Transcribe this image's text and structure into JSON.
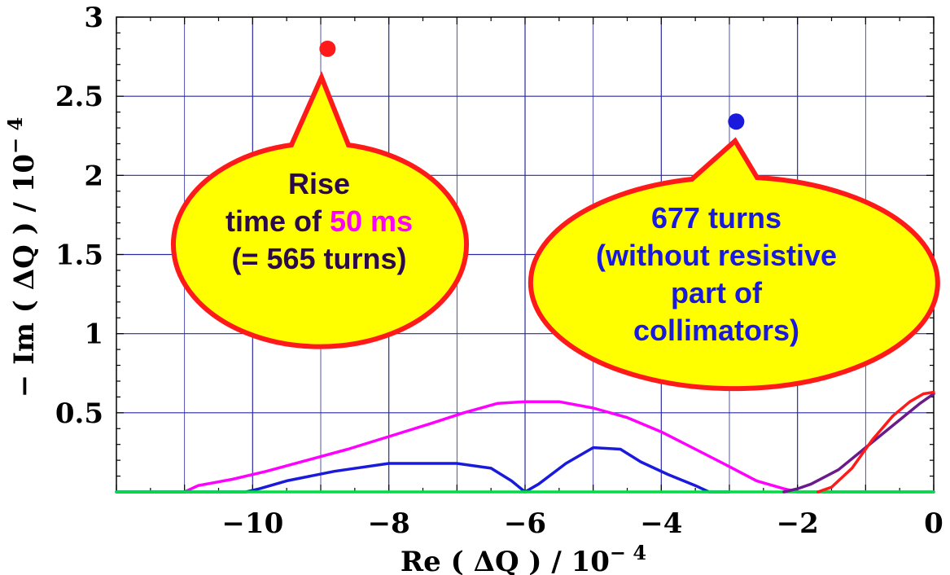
{
  "chart_data": {
    "type": "line",
    "xlabel_main": "Re ( ΔQ ) / 10",
    "xlabel_exp": "− 4",
    "ylabel_main": "− Im ( ΔQ ) / 10",
    "ylabel_exp": "− 4",
    "xlim": [
      -12,
      0
    ],
    "ylim": [
      0,
      3
    ],
    "xticks": [
      -10,
      -8,
      -6,
      -4,
      -2,
      0
    ],
    "xtick_labels": [
      "−10",
      "−8",
      "−6",
      "−4",
      "−2",
      "0"
    ],
    "yticks": [
      0.5,
      1,
      1.5,
      2,
      2.5,
      3
    ],
    "ytick_labels": [
      "0.5",
      "1",
      "1.5",
      "2",
      "2.5",
      "3"
    ],
    "grid": true,
    "series": [
      {
        "color": "#ff00ff",
        "points": [
          [
            -12,
            0
          ],
          [
            -11,
            0
          ],
          [
            -10.8,
            0.04
          ],
          [
            -10.3,
            0.08
          ],
          [
            -9.8,
            0.13
          ],
          [
            -9.2,
            0.2
          ],
          [
            -8.6,
            0.27
          ],
          [
            -8,
            0.35
          ],
          [
            -7.4,
            0.43
          ],
          [
            -6.9,
            0.5
          ],
          [
            -6.4,
            0.56
          ],
          [
            -6,
            0.57
          ],
          [
            -5.5,
            0.57
          ],
          [
            -5,
            0.53
          ],
          [
            -4.5,
            0.47
          ],
          [
            -4,
            0.38
          ],
          [
            -3.5,
            0.27
          ],
          [
            -3,
            0.16
          ],
          [
            -2.6,
            0.07
          ],
          [
            -2.2,
            0.02
          ],
          [
            -2,
            0
          ],
          [
            -1.5,
            0
          ],
          [
            -0.6,
            0
          ],
          [
            0,
            0
          ]
        ]
      },
      {
        "color": "#1a1adc",
        "points": [
          [
            -12,
            0
          ],
          [
            -10.1,
            0
          ],
          [
            -9.9,
            0.02
          ],
          [
            -9.5,
            0.07
          ],
          [
            -8.8,
            0.13
          ],
          [
            -8,
            0.18
          ],
          [
            -7,
            0.18
          ],
          [
            -6.5,
            0.15
          ],
          [
            -6.2,
            0.07
          ],
          [
            -6,
            0
          ],
          [
            -5.8,
            0.05
          ],
          [
            -5.4,
            0.18
          ],
          [
            -5,
            0.28
          ],
          [
            -4.6,
            0.27
          ],
          [
            -4.3,
            0.19
          ],
          [
            -3.9,
            0.11
          ],
          [
            -3.5,
            0.04
          ],
          [
            -3.3,
            0
          ],
          [
            -3,
            0
          ]
        ]
      },
      {
        "color": "#00dd44",
        "points": [
          [
            -12,
            0
          ],
          [
            -10.4,
            0
          ],
          [
            -10.2,
            0
          ],
          [
            -9.8,
            0
          ],
          [
            -3.6,
            0
          ],
          [
            0,
            0
          ]
        ]
      },
      {
        "color": "#6a1a8a",
        "points": [
          [
            -2.2,
            0
          ],
          [
            -2.0,
            0.02
          ],
          [
            -1.8,
            0.05
          ],
          [
            -1.4,
            0.14
          ],
          [
            -1,
            0.28
          ],
          [
            -0.6,
            0.42
          ],
          [
            -0.2,
            0.56
          ],
          [
            0,
            0.62
          ]
        ]
      },
      {
        "color": "#ff1a1a",
        "points": [
          [
            -1.7,
            0
          ],
          [
            -1.5,
            0.03
          ],
          [
            -1.2,
            0.15
          ],
          [
            -0.9,
            0.33
          ],
          [
            -0.6,
            0.48
          ],
          [
            -0.35,
            0.57
          ],
          [
            -0.15,
            0.62
          ],
          [
            0,
            0.63
          ]
        ]
      }
    ],
    "markers": [
      {
        "color": "#ff1a1a",
        "x": -8.9,
        "y": 2.8
      },
      {
        "color": "#1a1adc",
        "x": -2.9,
        "y": 2.34
      }
    ],
    "annotations": [
      {
        "lines": [
          [
            {
              "text": "Rise",
              "color": "#2a0a4a"
            }
          ],
          [
            {
              "text": "time of ",
              "color": "#2a0a4a"
            },
            {
              "text": "50 ms",
              "color": "#ff00ff"
            }
          ],
          [
            {
              "text": "(= 565 turns)",
              "color": "#2a0a4a"
            }
          ]
        ]
      },
      {
        "lines": [
          [
            {
              "text": "677 turns",
              "color": "#1a1adc"
            }
          ],
          [
            {
              "text": "(without resistive",
              "color": "#1a1adc"
            }
          ],
          [
            {
              "text": "part of",
              "color": "#1a1adc"
            }
          ],
          [
            {
              "text": "collimators)",
              "color": "#1a1adc"
            }
          ]
        ]
      }
    ]
  }
}
